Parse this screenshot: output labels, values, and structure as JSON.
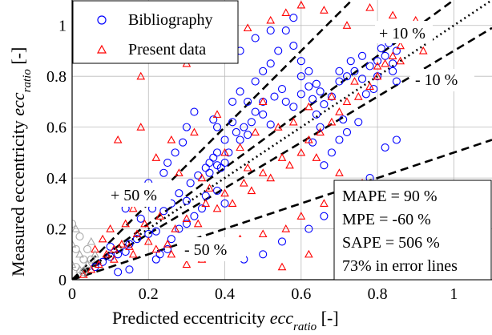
{
  "chart_data": {
    "type": "scatter",
    "xlabel_main": "Predicted eccentricity ",
    "xlabel_var": "ecc",
    "xlabel_sub": "ratio",
    "xlabel_unit": " [-]",
    "ylabel_main": "Measured eccentricity ",
    "ylabel_var": "ecc",
    "ylabel_sub": "ratio",
    "ylabel_unit": " [-]",
    "xlim": [
      0,
      1.1
    ],
    "ylim": [
      0,
      1.1
    ],
    "xticks": [
      0,
      0.2,
      0.4,
      0.6,
      0.8,
      1
    ],
    "yticks": [
      0,
      0.2,
      0.4,
      0.6,
      0.8,
      1
    ],
    "xtick_labels": [
      "0",
      "0.2",
      "0.4",
      "0.6",
      "0.8",
      "1"
    ],
    "ytick_labels": [
      "0",
      "0.2",
      "0.4",
      "0.6",
      "0.8",
      "1"
    ],
    "grid": true,
    "legend_placement": "top-left",
    "series": [
      {
        "name": "Bibliography",
        "marker": "circle",
        "color": "#0000ff",
        "points": [
          [
            0.06,
            0.05
          ],
          [
            0.08,
            0.07
          ],
          [
            0.1,
            0.09
          ],
          [
            0.12,
            0.1
          ],
          [
            0.14,
            0.11
          ],
          [
            0.15,
            0.14
          ],
          [
            0.1,
            0.13
          ],
          [
            0.17,
            0.16
          ],
          [
            0.2,
            0.18
          ],
          [
            0.22,
            0.19
          ],
          [
            0.18,
            0.24
          ],
          [
            0.21,
            0.28
          ],
          [
            0.24,
            0.27
          ],
          [
            0.26,
            0.3
          ],
          [
            0.28,
            0.34
          ],
          [
            0.3,
            0.31
          ],
          [
            0.31,
            0.38
          ],
          [
            0.33,
            0.41
          ],
          [
            0.35,
            0.44
          ],
          [
            0.36,
            0.46
          ],
          [
            0.37,
            0.48
          ],
          [
            0.38,
            0.5
          ],
          [
            0.36,
            0.42
          ],
          [
            0.38,
            0.45
          ],
          [
            0.39,
            0.44
          ],
          [
            0.4,
            0.46
          ],
          [
            0.41,
            0.5
          ],
          [
            0.4,
            0.55
          ],
          [
            0.38,
            0.6
          ],
          [
            0.37,
            0.63
          ],
          [
            0.42,
            0.62
          ],
          [
            0.43,
            0.58
          ],
          [
            0.44,
            0.55
          ],
          [
            0.45,
            0.6
          ],
          [
            0.46,
            0.57
          ],
          [
            0.47,
            0.62
          ],
          [
            0.48,
            0.66
          ],
          [
            0.5,
            0.65
          ],
          [
            0.52,
            0.61
          ],
          [
            0.5,
            0.7
          ],
          [
            0.53,
            0.72
          ],
          [
            0.55,
            0.75
          ],
          [
            0.56,
            0.7
          ],
          [
            0.58,
            0.68
          ],
          [
            0.6,
            0.73
          ],
          [
            0.62,
            0.76
          ],
          [
            0.63,
            0.71
          ],
          [
            0.64,
            0.77
          ],
          [
            0.65,
            0.74
          ],
          [
            0.66,
            0.69
          ],
          [
            0.68,
            0.72
          ],
          [
            0.7,
            0.78
          ],
          [
            0.72,
            0.8
          ],
          [
            0.74,
            0.82
          ],
          [
            0.76,
            0.79
          ],
          [
            0.78,
            0.84
          ],
          [
            0.8,
            0.86
          ],
          [
            0.82,
            0.88
          ],
          [
            0.84,
            0.85
          ],
          [
            0.85,
            0.9
          ],
          [
            0.83,
            0.93
          ],
          [
            0.81,
            0.91
          ],
          [
            0.79,
            0.75
          ],
          [
            0.77,
            0.73
          ],
          [
            0.75,
            0.62
          ],
          [
            0.72,
            0.58
          ],
          [
            0.7,
            0.55
          ],
          [
            0.68,
            0.5
          ],
          [
            0.66,
            0.45
          ],
          [
            0.64,
            0.65
          ],
          [
            0.6,
            0.86
          ],
          [
            0.58,
            0.92
          ],
          [
            0.56,
            0.98
          ],
          [
            0.54,
            0.9
          ],
          [
            0.52,
            0.85
          ],
          [
            0.5,
            0.82
          ],
          [
            0.48,
            0.78
          ],
          [
            0.46,
            0.7
          ],
          [
            0.44,
            0.74
          ],
          [
            0.42,
            0.7
          ],
          [
            0.35,
            0.33
          ],
          [
            0.34,
            0.28
          ],
          [
            0.32,
            0.25
          ],
          [
            0.3,
            0.22
          ],
          [
            0.28,
            0.2
          ],
          [
            0.26,
            0.16
          ],
          [
            0.25,
            0.12
          ],
          [
            0.23,
            0.1
          ],
          [
            0.22,
            0.08
          ],
          [
            0.15,
            0.04
          ],
          [
            0.12,
            0.03
          ],
          [
            0.4,
            0.12
          ],
          [
            0.45,
            0.08
          ],
          [
            0.5,
            0.1
          ],
          [
            0.55,
            0.15
          ],
          [
            0.62,
            0.2
          ],
          [
            0.66,
            0.25
          ],
          [
            0.7,
            0.3
          ],
          [
            0.74,
            0.35
          ],
          [
            0.78,
            0.4
          ],
          [
            0.82,
            0.52
          ],
          [
            0.85,
            0.55
          ],
          [
            0.4,
            0.3
          ],
          [
            0.38,
            0.35
          ],
          [
            0.29,
            0.54
          ],
          [
            0.27,
            0.5
          ],
          [
            0.25,
            0.46
          ],
          [
            0.24,
            0.42
          ],
          [
            0.2,
            0.38
          ],
          [
            0.16,
            0.33
          ],
          [
            0.14,
            0.28
          ],
          [
            0.3,
            0.6
          ],
          [
            0.32,
            0.66
          ],
          [
            0.44,
            0.9
          ],
          [
            0.48,
            0.95
          ],
          [
            0.52,
            0.98
          ],
          [
            0.58,
            1.03
          ],
          [
            0.6,
            0.8
          ],
          [
            0.62,
            0.82
          ],
          [
            0.7,
            0.82
          ],
          [
            0.73,
            0.86
          ],
          [
            0.76,
            0.88
          ],
          [
            0.8,
            0.8
          ],
          [
            0.84,
            0.82
          ],
          [
            0.85,
            0.78
          ],
          [
            0.71,
            0.63
          ],
          [
            0.65,
            0.6
          ],
          [
            0.63,
            0.54
          ]
        ]
      },
      {
        "name": "Present data",
        "marker": "triangle",
        "color": "#ff0000",
        "points": [
          [
            0.03,
            0.02
          ],
          [
            0.05,
            0.04
          ],
          [
            0.07,
            0.06
          ],
          [
            0.09,
            0.1
          ],
          [
            0.11,
            0.12
          ],
          [
            0.13,
            0.14
          ],
          [
            0.15,
            0.13
          ],
          [
            0.17,
            0.18
          ],
          [
            0.2,
            0.15
          ],
          [
            0.22,
            0.12
          ],
          [
            0.25,
            0.14
          ],
          [
            0.27,
            0.2
          ],
          [
            0.3,
            0.24
          ],
          [
            0.33,
            0.22
          ],
          [
            0.35,
            0.3
          ],
          [
            0.38,
            0.28
          ],
          [
            0.4,
            0.34
          ],
          [
            0.42,
            0.3
          ],
          [
            0.45,
            0.38
          ],
          [
            0.47,
            0.35
          ],
          [
            0.5,
            0.42
          ],
          [
            0.52,
            0.4
          ],
          [
            0.55,
            0.48
          ],
          [
            0.57,
            0.45
          ],
          [
            0.6,
            0.5
          ],
          [
            0.62,
            0.55
          ],
          [
            0.65,
            0.58
          ],
          [
            0.68,
            0.62
          ],
          [
            0.7,
            0.66
          ],
          [
            0.72,
            0.7
          ],
          [
            0.75,
            0.72
          ],
          [
            0.78,
            0.76
          ],
          [
            0.8,
            0.8
          ],
          [
            0.82,
            0.85
          ],
          [
            0.84,
            0.88
          ],
          [
            0.86,
            0.92
          ],
          [
            0.88,
            0.95
          ],
          [
            0.9,
            0.98
          ],
          [
            0.18,
            0.8
          ],
          [
            0.24,
            0.92
          ],
          [
            0.3,
            0.85
          ],
          [
            0.36,
            0.95
          ],
          [
            0.42,
            0.88
          ],
          [
            0.46,
            0.99
          ],
          [
            0.52,
            1.02
          ],
          [
            0.56,
            1.05
          ],
          [
            0.6,
            1.08
          ],
          [
            0.66,
            1.06
          ],
          [
            0.72,
            1.0
          ],
          [
            0.78,
            1.07
          ],
          [
            0.84,
            1.04
          ],
          [
            0.9,
            1.02
          ],
          [
            0.12,
            0.55
          ],
          [
            0.18,
            0.6
          ],
          [
            0.22,
            0.48
          ],
          [
            0.26,
            0.55
          ],
          [
            0.32,
            0.58
          ],
          [
            0.38,
            0.65
          ],
          [
            0.5,
            0.7
          ],
          [
            0.58,
            0.62
          ],
          [
            0.64,
            0.48
          ],
          [
            0.7,
            0.42
          ],
          [
            0.76,
            0.38
          ],
          [
            0.8,
            0.33
          ],
          [
            0.86,
            0.3
          ],
          [
            0.9,
            0.36
          ],
          [
            0.66,
            0.3
          ],
          [
            0.6,
            0.25
          ],
          [
            0.56,
            0.2
          ],
          [
            0.5,
            0.18
          ],
          [
            0.44,
            0.16
          ],
          [
            0.38,
            0.12
          ],
          [
            0.34,
            0.08
          ],
          [
            0.3,
            0.06
          ],
          [
            0.26,
            0.1
          ],
          [
            0.55,
            0.05
          ],
          [
            0.62,
            0.1
          ],
          [
            0.7,
            0.18
          ],
          [
            0.74,
            0.22
          ],
          [
            0.1,
            0.2
          ],
          [
            0.14,
            0.22
          ],
          [
            0.16,
            0.28
          ],
          [
            0.2,
            0.3
          ],
          [
            0.24,
            0.35
          ],
          [
            0.28,
            0.42
          ],
          [
            0.34,
            0.4
          ],
          [
            0.4,
            0.5
          ],
          [
            0.44,
            0.52
          ],
          [
            0.48,
            0.58
          ],
          [
            0.54,
            0.6
          ],
          [
            0.62,
            0.68
          ],
          [
            0.68,
            0.72
          ],
          [
            0.74,
            0.78
          ],
          [
            0.8,
            0.84
          ],
          [
            0.86,
            0.86
          ],
          [
            0.92,
            0.9
          ],
          [
            0.06,
            0.12
          ],
          [
            0.08,
            0.16
          ],
          [
            0.11,
            0.08
          ],
          [
            0.16,
            0.1
          ],
          [
            0.19,
            0.22
          ],
          [
            0.23,
            0.25
          ],
          [
            0.36,
            0.36
          ],
          [
            0.46,
            0.44
          ]
        ]
      },
      {
        "name": "",
        "marker": "mixed-grey",
        "color": "#aaaaaa",
        "points": [
          [
            0.0,
            0.22
          ],
          [
            0.01,
            0.2
          ],
          [
            0.02,
            0.17
          ],
          [
            0.0,
            0.14
          ],
          [
            0.01,
            0.12
          ],
          [
            0.02,
            0.1
          ],
          [
            0.03,
            0.08
          ],
          [
            0.0,
            0.06
          ],
          [
            0.01,
            0.05
          ],
          [
            0.02,
            0.04
          ],
          [
            0.03,
            0.03
          ],
          [
            0.04,
            0.06
          ],
          [
            0.05,
            0.08
          ],
          [
            0.06,
            0.1
          ],
          [
            0.04,
            0.12
          ],
          [
            0.05,
            0.15
          ]
        ]
      }
    ],
    "lines": [
      {
        "slope": 1.5,
        "style": "dashed",
        "label": "+ 50 %"
      },
      {
        "slope": 1.1,
        "style": "dashed",
        "label": "+ 10 %"
      },
      {
        "slope": 1.0,
        "style": "dotted",
        "label": ""
      },
      {
        "slope": 0.9,
        "style": "dashed",
        "label": "- 10 %"
      },
      {
        "slope": 0.5,
        "style": "dashed",
        "label": "- 50 %"
      }
    ],
    "annotations": {
      "plus50": "+ 50 %",
      "plus10": "+ 10 %",
      "minus10": "- 10 %",
      "minus50": "- 50 %"
    },
    "stats_box": {
      "lines": [
        "MAPE = 90 %",
        "MPE = -60 %",
        "SAPE = 506 %",
        "73% in error lines"
      ]
    },
    "legend": {
      "items": [
        "Bibliography",
        "Present data"
      ]
    }
  }
}
